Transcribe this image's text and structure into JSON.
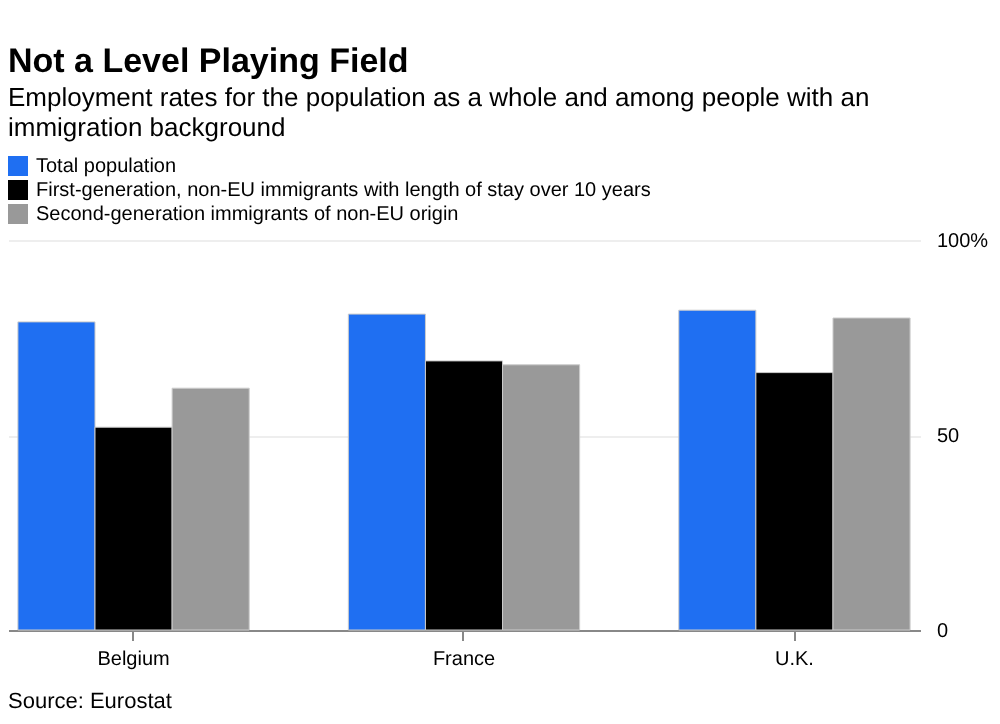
{
  "chart_data": {
    "type": "bar",
    "title": "Not a Level Playing Field",
    "subtitle": "Employment rates for the population as a whole and among people with an immigration background",
    "categories": [
      "Belgium",
      "France",
      "U.K."
    ],
    "series": [
      {
        "name": "Total population",
        "color": "#1f6ff2",
        "values": [
          79,
          81,
          82
        ]
      },
      {
        "name": "First-generation, non-EU immigrants with length of stay over 10 years",
        "color": "#000000",
        "values": [
          52,
          69,
          66
        ]
      },
      {
        "name": "Second-generation immigrants of non-EU origin",
        "color": "#999999",
        "values": [
          62,
          68,
          80
        ]
      }
    ],
    "ylim": [
      0,
      100
    ],
    "yticks": [
      0,
      50,
      {
        "value": 100,
        "label": "100%"
      }
    ],
    "grid": "y",
    "legend": "top",
    "annotations": [
      "Source: Eurostat"
    ]
  }
}
